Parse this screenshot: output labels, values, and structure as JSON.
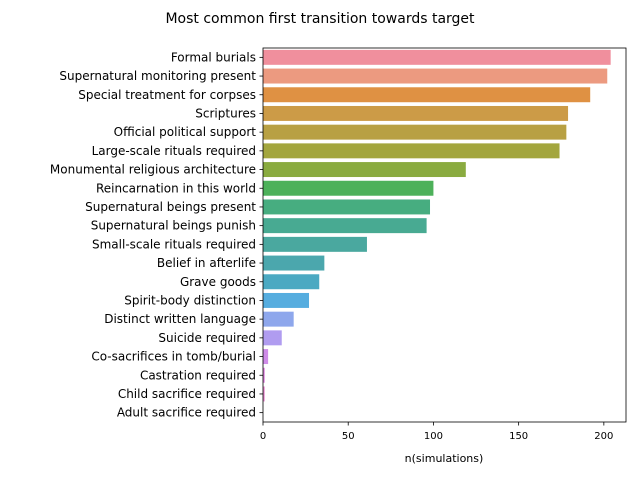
{
  "chart_data": {
    "type": "bar",
    "orientation": "horizontal",
    "title": "Most common first transition towards target",
    "xlabel": "n(simulations)",
    "ylabel": "",
    "xlim": [
      0,
      213
    ],
    "xticks": [
      0,
      50,
      100,
      150,
      200
    ],
    "grid": false,
    "categories": [
      "Formal burials",
      "Supernatural monitoring present",
      "Special treatment for corpses",
      "Scriptures",
      "Official political support",
      "Large-scale rituals required",
      "Monumental religious architecture",
      "Reincarnation in this world",
      "Supernatural beings present",
      "Supernatural beings punish",
      "Small-scale rituals required",
      "Belief in afterlife",
      "Grave goods",
      "Spirit-body distinction",
      "Distinct written language",
      "Suicide required",
      "Co-sacrifices in tomb/burial",
      "Castration required",
      "Child sacrifice required",
      "Adult sacrifice required"
    ],
    "values": [
      204,
      202,
      192,
      179,
      178,
      174,
      119,
      100,
      98,
      96,
      61,
      36,
      33,
      27,
      18,
      11,
      3,
      1,
      1,
      0
    ],
    "colors": [
      "#f08f9d",
      "#ec9a80",
      "#df9143",
      "#cc9b47",
      "#b8a043",
      "#a3a63e",
      "#8aab40",
      "#4db15a",
      "#47ad80",
      "#48aa92",
      "#4aa89f",
      "#4ba7ad",
      "#4ba9c2",
      "#56addf",
      "#8ea7ec",
      "#b09cf0",
      "#cf8ce8",
      "#de82df",
      "#e88bd0",
      "#ee91c0"
    ]
  }
}
